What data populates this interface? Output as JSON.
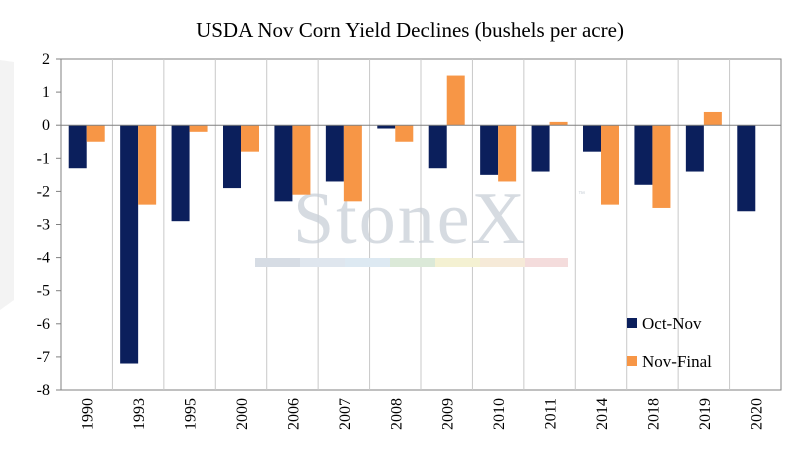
{
  "chart_data": {
    "type": "bar",
    "title": "USDA Nov Corn Yield Declines (bushels per acre)",
    "categories": [
      "1990",
      "1993",
      "1995",
      "2000",
      "2006",
      "2007",
      "2008",
      "2009",
      "2010",
      "2011",
      "2014",
      "2018",
      "2019",
      "2020"
    ],
    "series": [
      {
        "name": "Oct-Nov",
        "color": "#0b1f5c",
        "values": [
          -1.3,
          -7.2,
          -2.9,
          -1.9,
          -2.3,
          -1.7,
          -0.1,
          -1.3,
          -1.5,
          -1.4,
          -0.8,
          -1.8,
          -1.4,
          -2.6
        ]
      },
      {
        "name": "Nov-Final",
        "color": "#f79646",
        "values": [
          -0.5,
          -2.4,
          -0.2,
          -0.8,
          -2.1,
          -2.3,
          -0.5,
          1.5,
          -1.7,
          0.1,
          -2.4,
          -2.5,
          0.4,
          null
        ]
      }
    ],
    "ylim": [
      -8,
      2
    ],
    "yticks": [
      2,
      1,
      0,
      -1,
      -2,
      -3,
      -4,
      -5,
      -6,
      -7,
      -8
    ],
    "grid": "vertical",
    "legend_position": "bottom-right"
  },
  "watermark": {
    "text": "StoneX",
    "tm": "™"
  }
}
